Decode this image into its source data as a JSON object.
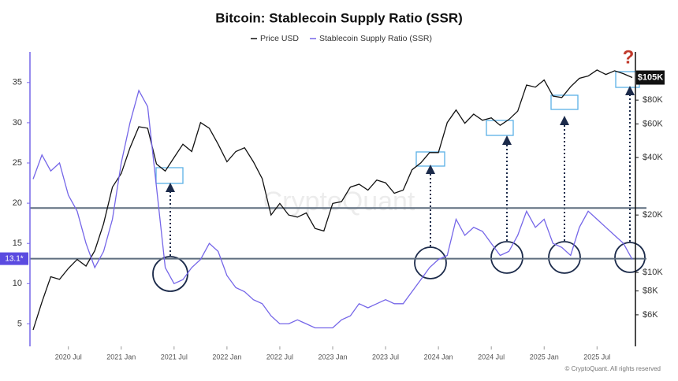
{
  "chart_data": {
    "type": "line",
    "title": "Bitcoin: Stablecoin Supply Ratio (SSR)",
    "x": [
      "2020-03",
      "2020-04",
      "2020-05",
      "2020-06",
      "2020-07",
      "2020-08",
      "2020-09",
      "2020-10",
      "2020-11",
      "2020-12",
      "2021-01",
      "2021-02",
      "2021-03",
      "2021-04",
      "2021-05",
      "2021-06",
      "2021-07",
      "2021-08",
      "2021-09",
      "2021-10",
      "2021-11",
      "2021-12",
      "2022-01",
      "2022-02",
      "2022-03",
      "2022-04",
      "2022-05",
      "2022-06",
      "2022-07",
      "2022-08",
      "2022-09",
      "2022-10",
      "2022-11",
      "2022-12",
      "2023-01",
      "2023-02",
      "2023-03",
      "2023-04",
      "2023-05",
      "2023-06",
      "2023-07",
      "2023-08",
      "2023-09",
      "2023-10",
      "2023-11",
      "2023-12",
      "2024-01",
      "2024-02",
      "2024-03",
      "2024-04",
      "2024-05",
      "2024-06",
      "2024-07",
      "2024-08",
      "2024-09",
      "2024-10",
      "2024-11",
      "2024-12",
      "2025-01",
      "2025-02",
      "2025-03",
      "2025-04",
      "2025-05",
      "2025-06",
      "2025-07",
      "2025-08",
      "2025-09",
      "2025-10",
      "2025-11"
    ],
    "series": [
      {
        "name": "Price USD",
        "color": "#111111",
        "axis": "y2",
        "values": [
          5000,
          7000,
          9500,
          9200,
          10500,
          11700,
          10800,
          13000,
          18000,
          28000,
          33000,
          45000,
          58000,
          57000,
          37000,
          34000,
          40000,
          47000,
          43000,
          61000,
          57000,
          47000,
          38000,
          43000,
          45000,
          38000,
          31000,
          20000,
          23000,
          20000,
          19500,
          20500,
          17000,
          16500,
          23000,
          23500,
          28000,
          29000,
          27000,
          30500,
          29500,
          26000,
          27000,
          34500,
          37500,
          42500,
          42500,
          61000,
          71000,
          60500,
          67500,
          62700,
          64600,
          59000,
          63300,
          70000,
          96000,
          93500,
          102000,
          84000,
          82500,
          94000,
          104000,
          107000,
          115000,
          109000,
          114000,
          110000,
          105000
        ]
      },
      {
        "name": "Stablecoin Supply Ratio (SSR)",
        "color": "#7566e8",
        "values": [
          23,
          26,
          24,
          25,
          21,
          19,
          15,
          12,
          14,
          18,
          25,
          30,
          34,
          32,
          22,
          12,
          10,
          10.5,
          12,
          13,
          15,
          14,
          11,
          9.5,
          9,
          8,
          7.5,
          6,
          5,
          5,
          5.5,
          5,
          4.5,
          4.5,
          4.5,
          5.5,
          6,
          7.5,
          7,
          7.5,
          8,
          7.5,
          7.5,
          9,
          10.5,
          12,
          13,
          13.5,
          18,
          16,
          17,
          16.5,
          15,
          13.5,
          14,
          16,
          19,
          17,
          18,
          15,
          14.5,
          13.5,
          17,
          19,
          18,
          17,
          16,
          15,
          13
        ]
      }
    ],
    "xticks": [
      {
        "value": "2020-07",
        "label": "2020 Jul"
      },
      {
        "value": "2021-01",
        "label": "2021 Jan"
      },
      {
        "value": "2021-07",
        "label": "2021 Jul"
      },
      {
        "value": "2022-01",
        "label": "2022 Jan"
      },
      {
        "value": "2022-07",
        "label": "2022 Jul"
      },
      {
        "value": "2023-01",
        "label": "2023 Jan"
      },
      {
        "value": "2023-07",
        "label": "2023 Jul"
      },
      {
        "value": "2024-01",
        "label": "2024 Jan"
      },
      {
        "value": "2024-07",
        "label": "2024 Jul"
      },
      {
        "value": "2025-01",
        "label": "2025 Jan"
      },
      {
        "value": "2025-07",
        "label": "2025 Jul"
      }
    ],
    "ylim": [
      2.2,
      38.8
    ],
    "yticks": [
      5,
      10,
      15,
      20,
      25,
      30,
      35
    ],
    "y2lim": [
      4100,
      143000
    ],
    "y2log": true,
    "y2ticks": [
      {
        "value": 6000,
        "label": "$6K"
      },
      {
        "value": 8000,
        "label": "$8K"
      },
      {
        "value": 10000,
        "label": "$10K"
      },
      {
        "value": 20000,
        "label": "$20K"
      },
      {
        "value": 40000,
        "label": "$40K"
      },
      {
        "value": 60000,
        "label": "$60K"
      },
      {
        "value": 80000,
        "label": "$80K"
      }
    ],
    "current_price": {
      "value": 105000,
      "label": "$105K"
    },
    "reference_lines": [
      {
        "value": 19.4
      },
      {
        "value": 13.1,
        "label": "13.1*"
      }
    ],
    "annotation_mark": "?",
    "watermark": "CryptoQuant",
    "footer": "© CryptoQuant. All rights reserved"
  }
}
